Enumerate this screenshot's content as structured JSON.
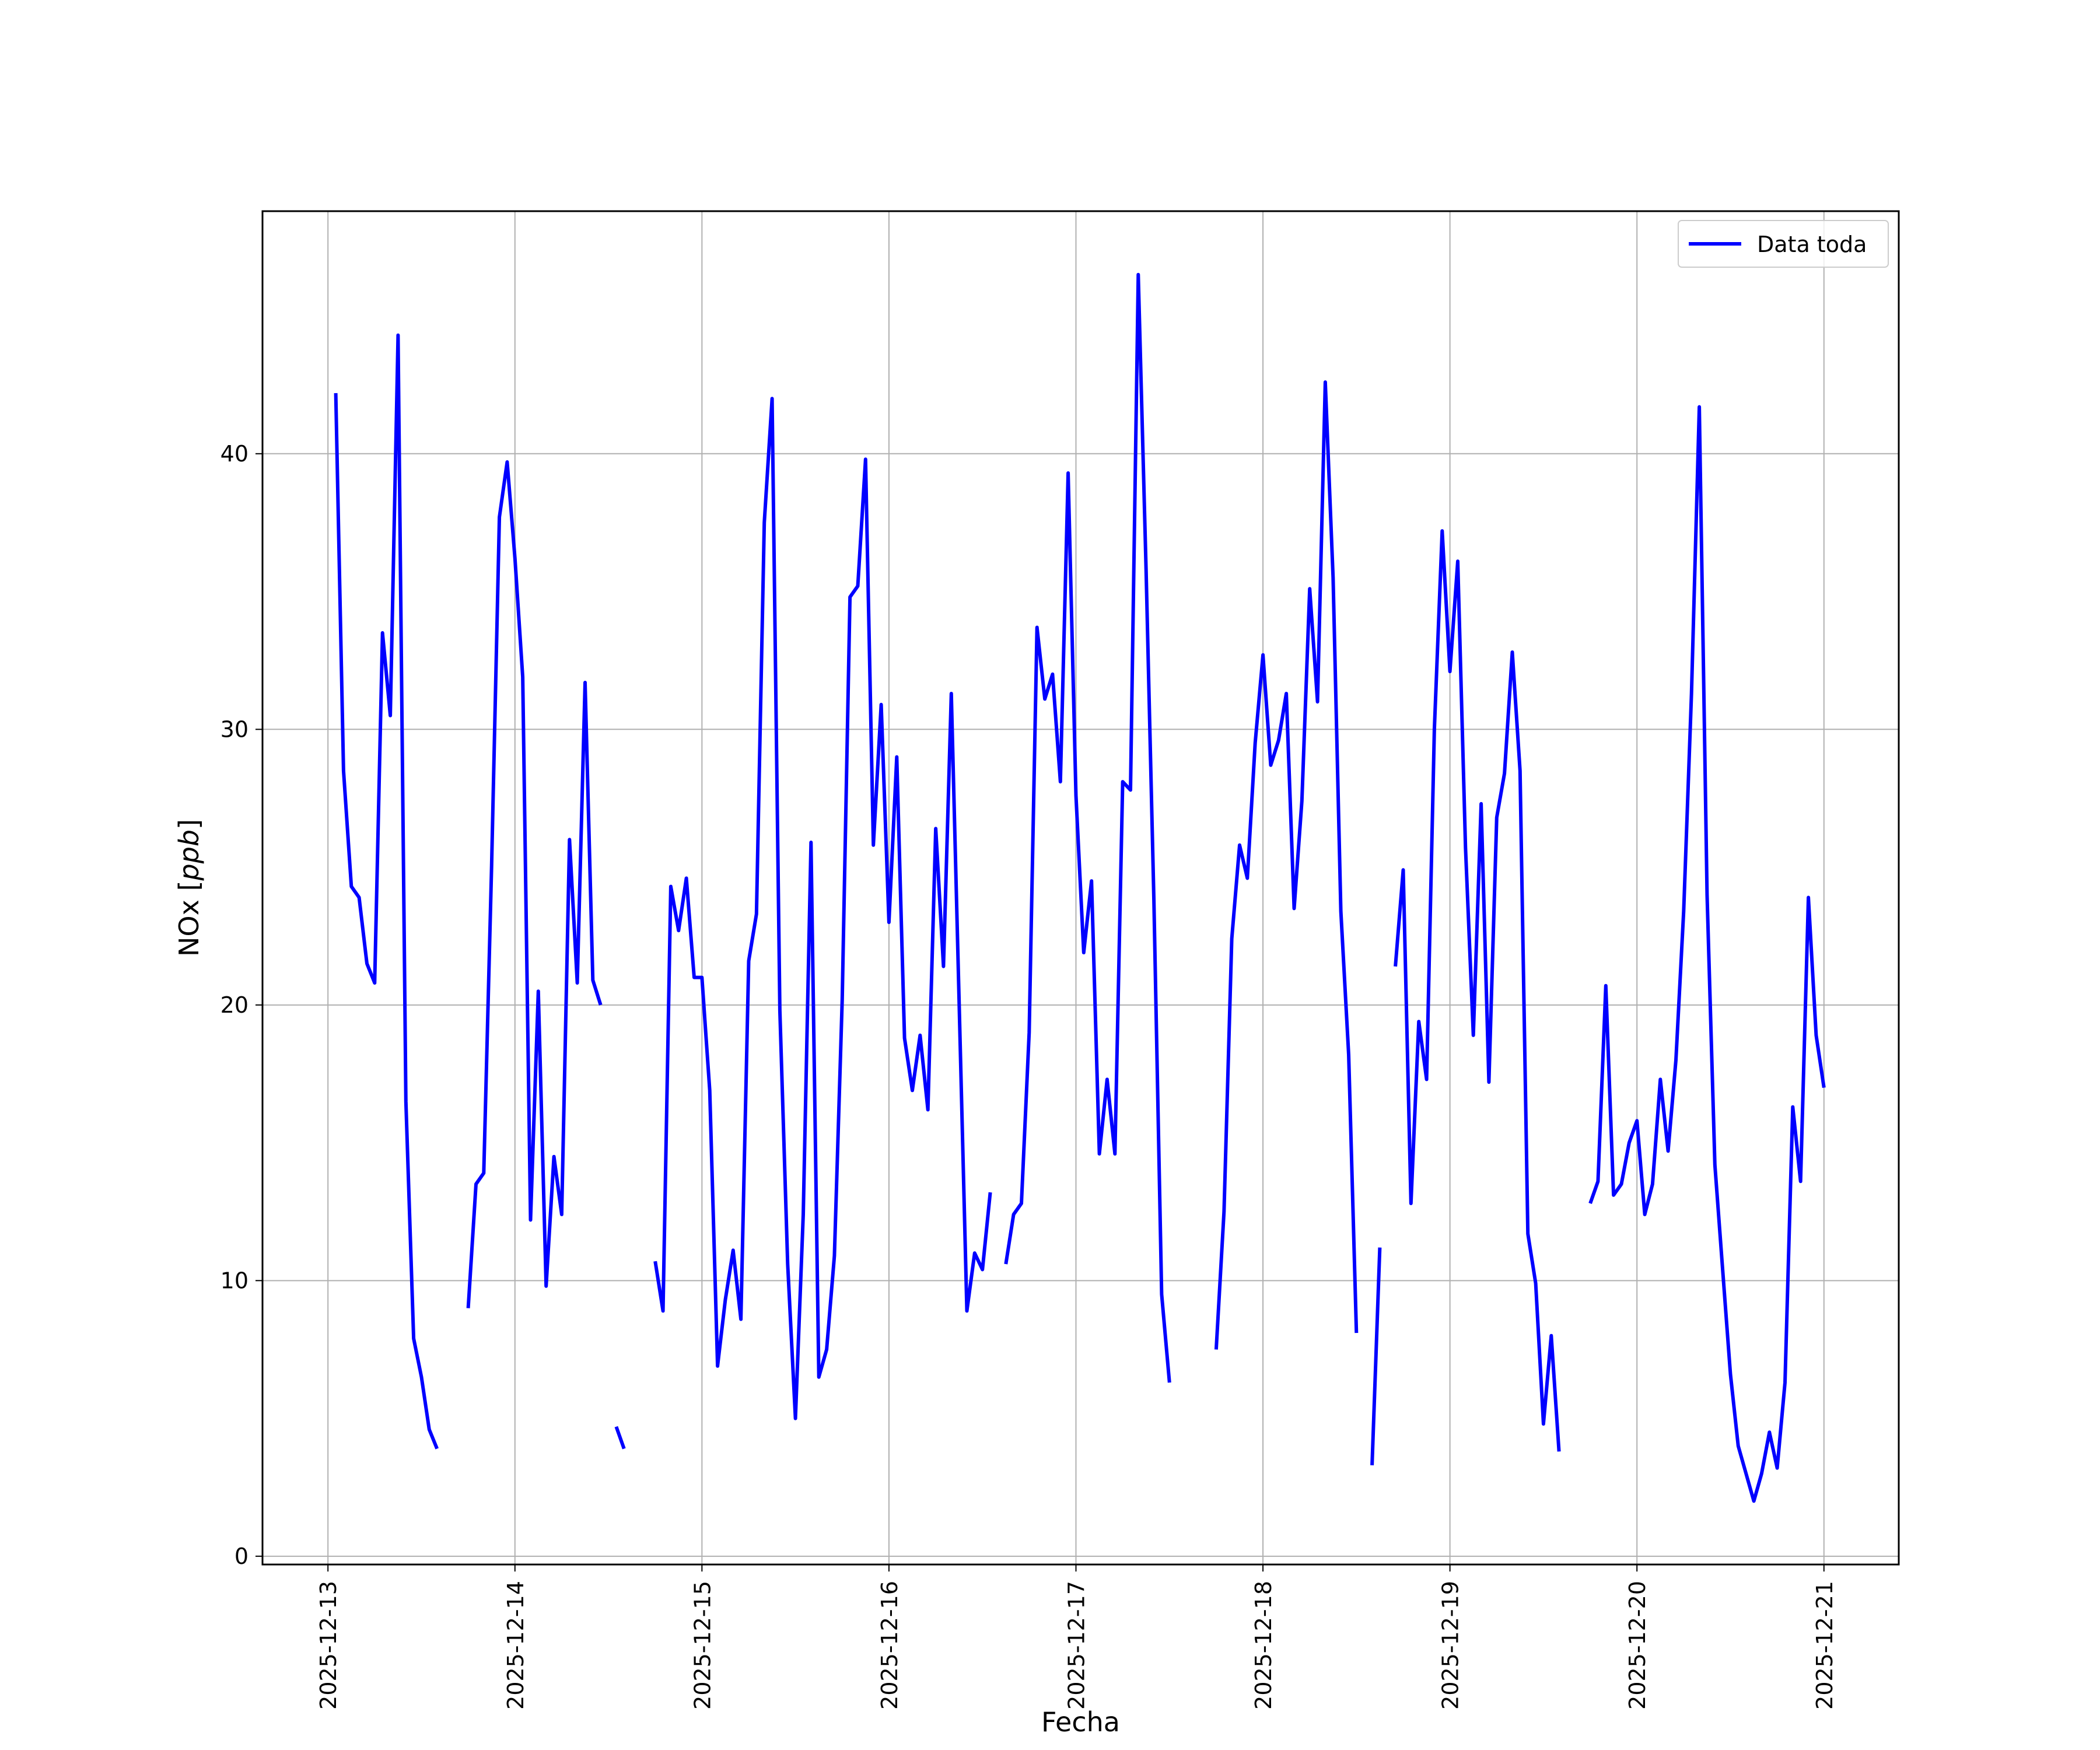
{
  "chart_data": {
    "type": "line",
    "title": "",
    "xlabel": "Fecha",
    "ylabel": "NOx [ppb]",
    "ylabel_parts": {
      "prefix": "NOx [",
      "unit": "ppb",
      "suffix": "]"
    },
    "grid": true,
    "legend_position": "top-right",
    "x_ticks": [
      "2025-12-13",
      "2025-12-14",
      "2025-12-15",
      "2025-12-16",
      "2025-12-17",
      "2025-12-18",
      "2025-12-19",
      "2025-12-20",
      "2025-12-21"
    ],
    "y_ticks": [
      0,
      10,
      20,
      30,
      40
    ],
    "xlim": [
      "2025-12-12 15:36",
      "2025-12-21 09:36"
    ],
    "ylim": [
      -0.3,
      48.8
    ],
    "series": [
      {
        "name": "Data toda",
        "color": "#0000ff",
        "points": [
          [
            "2025-12-13 01:00",
            42.2
          ],
          [
            "2025-12-13 02:00",
            28.5
          ],
          [
            "2025-12-13 03:00",
            24.3
          ],
          [
            "2025-12-13 04:00",
            23.9
          ],
          [
            "2025-12-13 05:00",
            21.5
          ],
          [
            "2025-12-13 06:00",
            20.8
          ],
          [
            "2025-12-13 07:00",
            33.5
          ],
          [
            "2025-12-13 08:00",
            30.5
          ],
          [
            "2025-12-13 09:00",
            44.3
          ],
          [
            "2025-12-13 10:00",
            16.5
          ],
          [
            "2025-12-13 11:00",
            7.9
          ],
          [
            "2025-12-13 12:00",
            6.5
          ],
          [
            "2025-12-13 13:00",
            4.6
          ],
          [
            "2025-12-13 14:00",
            3.9
          ],
          null,
          [
            "2025-12-13 18:00",
            9.0
          ],
          [
            "2025-12-13 19:00",
            13.5
          ],
          [
            "2025-12-13 20:00",
            13.9
          ],
          [
            "2025-12-13 21:00",
            25.0
          ],
          [
            "2025-12-13 22:00",
            37.7
          ],
          [
            "2025-12-13 23:00",
            39.7
          ],
          [
            "2025-12-14 00:00",
            36.2
          ],
          [
            "2025-12-14 01:00",
            31.9
          ],
          [
            "2025-12-14 02:00",
            12.2
          ],
          [
            "2025-12-14 03:00",
            20.5
          ],
          [
            "2025-12-14 04:00",
            9.8
          ],
          [
            "2025-12-14 05:00",
            14.5
          ],
          [
            "2025-12-14 06:00",
            12.4
          ],
          [
            "2025-12-14 07:00",
            26.0
          ],
          [
            "2025-12-14 08:00",
            20.8
          ],
          [
            "2025-12-14 09:00",
            31.7
          ],
          [
            "2025-12-14 10:00",
            20.9
          ],
          [
            "2025-12-14 11:00",
            20.0
          ],
          null,
          [
            "2025-12-14 13:00",
            4.7
          ],
          [
            "2025-12-14 14:00",
            3.9
          ],
          null,
          [
            "2025-12-14 18:00",
            10.7
          ],
          [
            "2025-12-14 19:00",
            8.9
          ],
          [
            "2025-12-14 20:00",
            24.3
          ],
          [
            "2025-12-14 21:00",
            22.7
          ],
          [
            "2025-12-14 22:00",
            24.6
          ],
          [
            "2025-12-14 23:00",
            21.0
          ],
          [
            "2025-12-15 00:00",
            21.0
          ],
          [
            "2025-12-15 01:00",
            16.9
          ],
          [
            "2025-12-15 02:00",
            6.9
          ],
          [
            "2025-12-15 03:00",
            9.3
          ],
          [
            "2025-12-15 04:00",
            11.1
          ],
          [
            "2025-12-15 05:00",
            8.6
          ],
          [
            "2025-12-15 06:00",
            21.6
          ],
          [
            "2025-12-15 07:00",
            23.3
          ],
          [
            "2025-12-15 08:00",
            37.5
          ],
          [
            "2025-12-15 09:00",
            42.0
          ],
          [
            "2025-12-15 10:00",
            19.8
          ],
          [
            "2025-12-15 11:00",
            10.6
          ],
          [
            "2025-12-15 12:00",
            5.0
          ],
          [
            "2025-12-15 13:00",
            12.4
          ],
          [
            "2025-12-15 14:00",
            25.9
          ],
          [
            "2025-12-15 15:00",
            6.5
          ],
          [
            "2025-12-15 16:00",
            7.5
          ],
          [
            "2025-12-15 17:00",
            10.9
          ],
          [
            "2025-12-15 18:00",
            20.2
          ],
          [
            "2025-12-15 19:00",
            34.8
          ],
          [
            "2025-12-15 20:00",
            35.2
          ],
          [
            "2025-12-15 21:00",
            39.8
          ],
          [
            "2025-12-15 22:00",
            25.8
          ],
          [
            "2025-12-15 23:00",
            30.9
          ],
          [
            "2025-12-16 00:00",
            23.0
          ],
          [
            "2025-12-16 01:00",
            29.0
          ],
          [
            "2025-12-16 02:00",
            18.8
          ],
          [
            "2025-12-16 03:00",
            16.9
          ],
          [
            "2025-12-16 04:00",
            18.9
          ],
          [
            "2025-12-16 05:00",
            16.2
          ],
          [
            "2025-12-16 06:00",
            26.4
          ],
          [
            "2025-12-16 07:00",
            21.4
          ],
          [
            "2025-12-16 08:00",
            31.3
          ],
          [
            "2025-12-16 09:00",
            20.2
          ],
          [
            "2025-12-16 10:00",
            8.9
          ],
          [
            "2025-12-16 11:00",
            11.0
          ],
          [
            "2025-12-16 12:00",
            10.4
          ],
          [
            "2025-12-16 13:00",
            13.2
          ],
          null,
          [
            "2025-12-16 15:00",
            10.6
          ],
          [
            "2025-12-16 16:00",
            12.4
          ],
          [
            "2025-12-16 17:00",
            12.8
          ],
          [
            "2025-12-16 18:00",
            19.0
          ],
          [
            "2025-12-16 19:00",
            33.7
          ],
          [
            "2025-12-16 20:00",
            31.1
          ],
          [
            "2025-12-16 21:00",
            32.0
          ],
          [
            "2025-12-16 22:00",
            28.1
          ],
          [
            "2025-12-16 23:00",
            39.3
          ],
          [
            "2025-12-17 00:00",
            27.6
          ],
          [
            "2025-12-17 01:00",
            21.9
          ],
          [
            "2025-12-17 02:00",
            24.5
          ],
          [
            "2025-12-17 03:00",
            14.6
          ],
          [
            "2025-12-17 04:00",
            17.3
          ],
          [
            "2025-12-17 05:00",
            14.6
          ],
          [
            "2025-12-17 06:00",
            28.1
          ],
          [
            "2025-12-17 07:00",
            27.8
          ],
          [
            "2025-12-17 08:00",
            46.5
          ],
          [
            "2025-12-17 09:00",
            35.8
          ],
          [
            "2025-12-17 10:00",
            23.8
          ],
          [
            "2025-12-17 11:00",
            9.5
          ],
          [
            "2025-12-17 12:00",
            6.3
          ],
          null,
          [
            "2025-12-17 18:00",
            7.5
          ],
          [
            "2025-12-17 19:00",
            12.5
          ],
          [
            "2025-12-17 20:00",
            22.4
          ],
          [
            "2025-12-17 21:00",
            25.8
          ],
          [
            "2025-12-17 22:00",
            24.6
          ],
          [
            "2025-12-17 23:00",
            29.5
          ],
          [
            "2025-12-18 00:00",
            32.7
          ],
          [
            "2025-12-18 01:00",
            28.7
          ],
          [
            "2025-12-18 02:00",
            29.6
          ],
          [
            "2025-12-18 03:00",
            31.3
          ],
          [
            "2025-12-18 04:00",
            23.5
          ],
          [
            "2025-12-18 05:00",
            27.4
          ],
          [
            "2025-12-18 06:00",
            35.1
          ],
          [
            "2025-12-18 07:00",
            31.0
          ],
          [
            "2025-12-18 08:00",
            42.6
          ],
          [
            "2025-12-18 09:00",
            35.5
          ],
          [
            "2025-12-18 10:00",
            23.4
          ],
          [
            "2025-12-18 11:00",
            18.2
          ],
          [
            "2025-12-18 12:00",
            8.1
          ],
          null,
          [
            "2025-12-18 14:00",
            3.3
          ],
          [
            "2025-12-18 15:00",
            11.2
          ],
          null,
          [
            "2025-12-18 17:00",
            21.4
          ],
          [
            "2025-12-18 18:00",
            24.9
          ],
          [
            "2025-12-18 19:00",
            12.8
          ],
          [
            "2025-12-18 20:00",
            19.4
          ],
          [
            "2025-12-18 21:00",
            17.3
          ],
          [
            "2025-12-18 22:00",
            30.0
          ],
          [
            "2025-12-18 23:00",
            37.2
          ],
          [
            "2025-12-19 00:00",
            32.1
          ],
          [
            "2025-12-19 01:00",
            36.1
          ],
          [
            "2025-12-19 02:00",
            25.7
          ],
          [
            "2025-12-19 03:00",
            18.9
          ],
          [
            "2025-12-19 04:00",
            27.3
          ],
          [
            "2025-12-19 05:00",
            17.2
          ],
          [
            "2025-12-19 06:00",
            26.8
          ],
          [
            "2025-12-19 07:00",
            28.4
          ],
          [
            "2025-12-19 08:00",
            32.8
          ],
          [
            "2025-12-19 09:00",
            28.5
          ],
          [
            "2025-12-19 10:00",
            11.7
          ],
          [
            "2025-12-19 11:00",
            9.9
          ],
          [
            "2025-12-19 12:00",
            4.8
          ],
          [
            "2025-12-19 13:00",
            8.0
          ],
          [
            "2025-12-19 14:00",
            3.8
          ],
          null,
          [
            "2025-12-19 18:00",
            12.8
          ],
          [
            "2025-12-19 19:00",
            13.6
          ],
          [
            "2025-12-19 20:00",
            20.7
          ],
          [
            "2025-12-19 21:00",
            13.1
          ],
          [
            "2025-12-19 22:00",
            13.5
          ],
          [
            "2025-12-19 23:00",
            15.0
          ],
          [
            "2025-12-20 00:00",
            15.8
          ],
          [
            "2025-12-20 01:00",
            12.4
          ],
          [
            "2025-12-20 02:00",
            13.5
          ],
          [
            "2025-12-20 03:00",
            17.3
          ],
          [
            "2025-12-20 04:00",
            14.7
          ],
          [
            "2025-12-20 05:00",
            18.0
          ],
          [
            "2025-12-20 06:00",
            23.4
          ],
          [
            "2025-12-20 07:00",
            31.3
          ],
          [
            "2025-12-20 08:00",
            41.7
          ],
          [
            "2025-12-20 09:00",
            24.0
          ],
          [
            "2025-12-20 10:00",
            14.2
          ],
          [
            "2025-12-20 11:00",
            10.4
          ],
          [
            "2025-12-20 12:00",
            6.6
          ],
          [
            "2025-12-20 13:00",
            4.0
          ],
          [
            "2025-12-20 14:00",
            3.0
          ],
          [
            "2025-12-20 15:00",
            2.0
          ],
          [
            "2025-12-20 16:00",
            3.0
          ],
          [
            "2025-12-20 17:00",
            4.5
          ],
          [
            "2025-12-20 18:00",
            3.2
          ],
          [
            "2025-12-20 19:00",
            6.3
          ],
          [
            "2025-12-20 20:00",
            16.3
          ],
          [
            "2025-12-20 21:00",
            13.6
          ],
          [
            "2025-12-20 22:00",
            23.9
          ],
          [
            "2025-12-20 23:00",
            18.9
          ],
          [
            "2025-12-21 00:00",
            17.0
          ]
        ]
      }
    ]
  }
}
